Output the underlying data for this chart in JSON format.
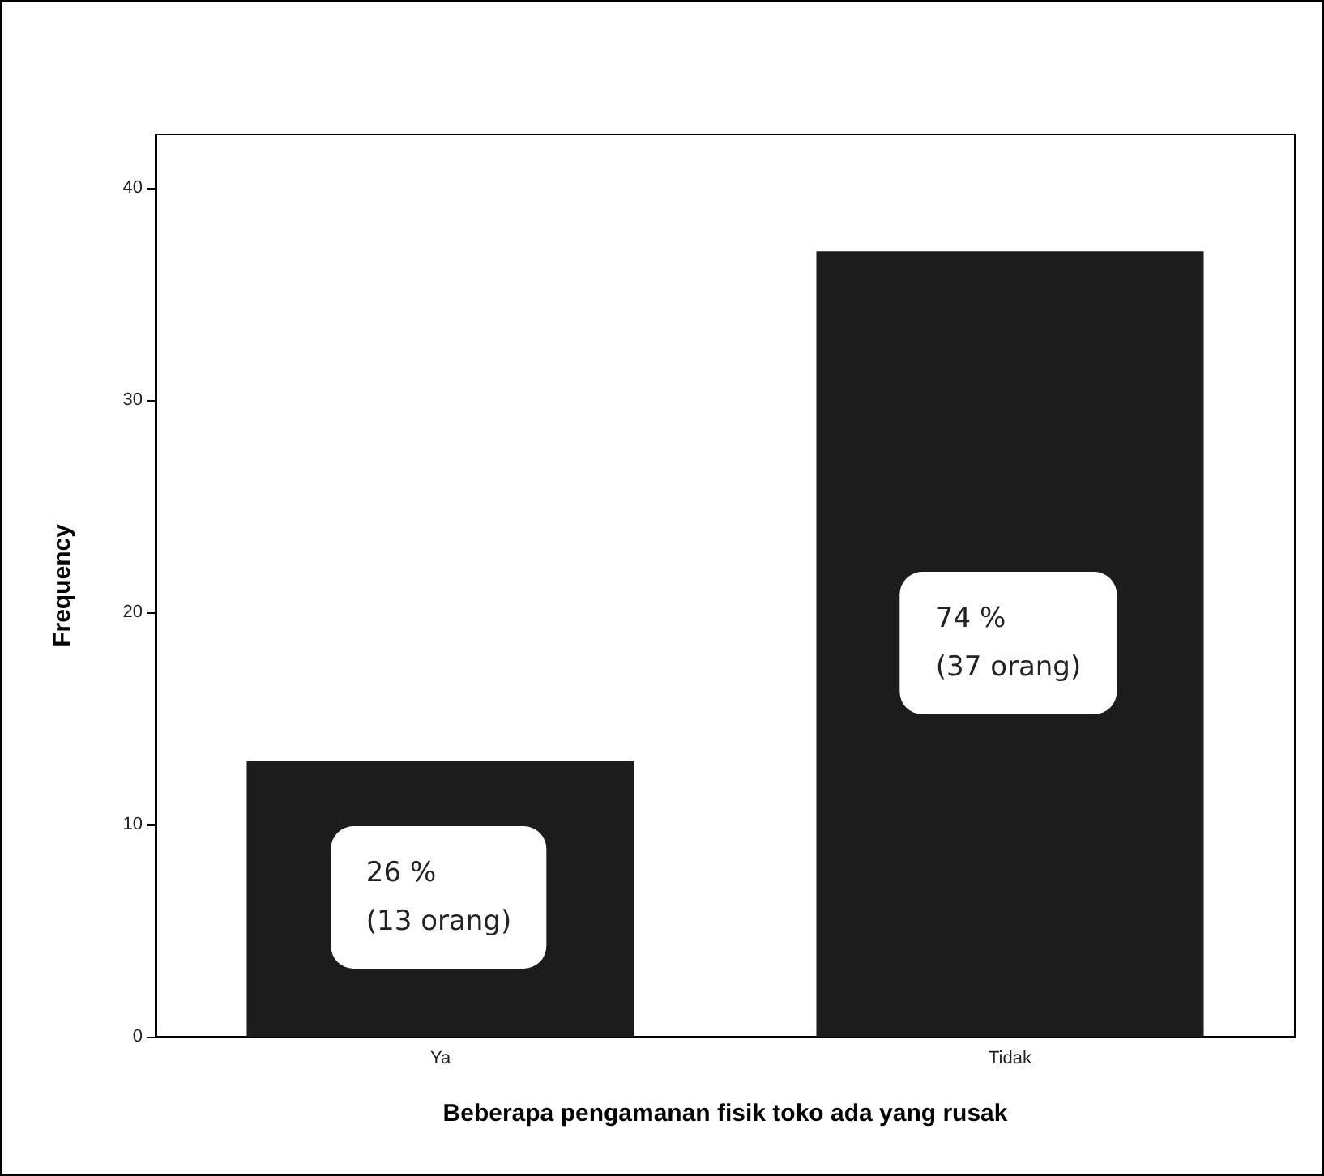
{
  "chart_data": {
    "type": "bar",
    "xlabel": "Beberapa pengamanan fisik toko ada yang rusak",
    "ylabel": "Frequency",
    "categories": [
      "Ya",
      "Tidak"
    ],
    "values": [
      13,
      37
    ],
    "color": "#1c1c1c",
    "value_labels": [
      "26 %\n(13 orang)",
      "74 %\n(37 orang)"
    ],
    "ylim": [
      0,
      42.5
    ],
    "yticks": [
      0,
      10,
      20,
      30,
      40
    ],
    "grid": false
  }
}
